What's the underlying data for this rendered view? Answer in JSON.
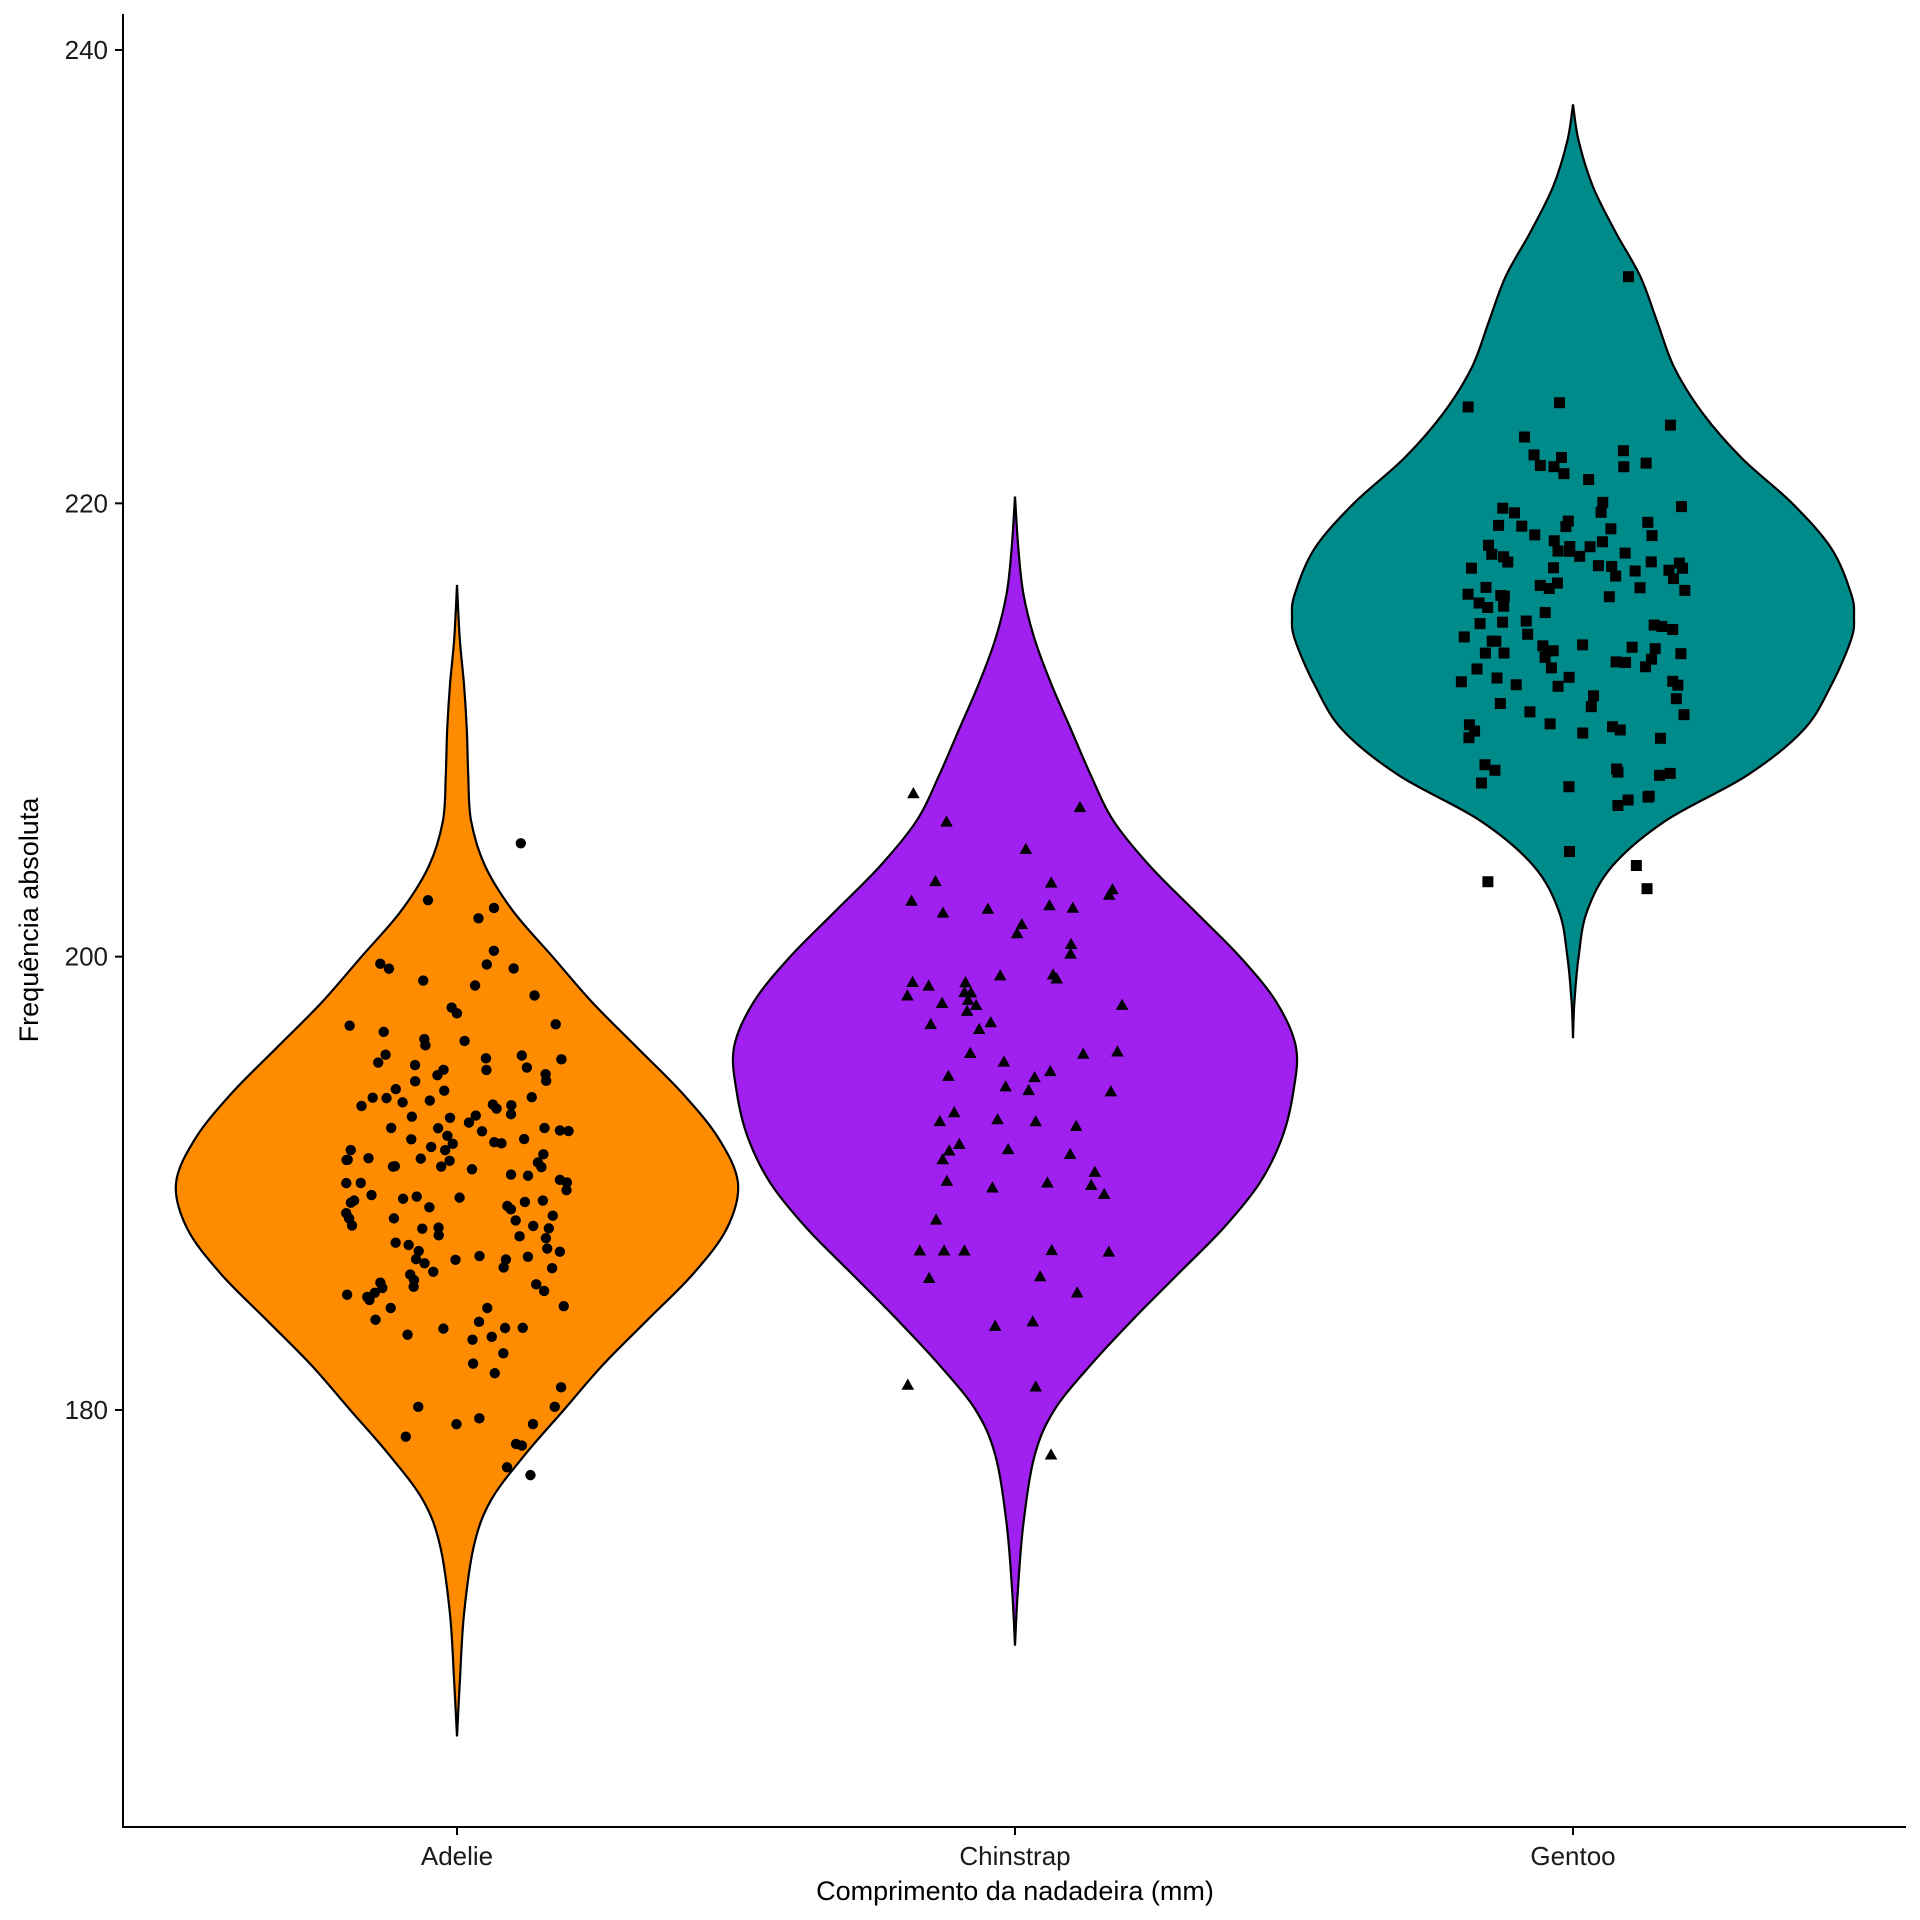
{
  "chart_data": {
    "type": "violin",
    "title": "",
    "xlabel": "Comprimento da nadadeira (mm)",
    "ylabel": "Frequência absoluta",
    "ylim": [
      160,
      241
    ],
    "yticks": [
      180,
      200,
      220,
      240
    ],
    "grid": false,
    "categories": [
      "Adelie",
      "Chinstrap",
      "Gentoo"
    ],
    "series": [
      {
        "name": "Adelie",
        "color": "#FF8C00",
        "marker": "circle",
        "range": [
          165.6,
          216.4
        ],
        "profile": [
          [
            165.6,
            0.0
          ],
          [
            168,
            0.01
          ],
          [
            171,
            0.025
          ],
          [
            174,
            0.06
          ],
          [
            176,
            0.12
          ],
          [
            178,
            0.24
          ],
          [
            180,
            0.38
          ],
          [
            182,
            0.52
          ],
          [
            184,
            0.68
          ],
          [
            186,
            0.84
          ],
          [
            188,
            0.96
          ],
          [
            190,
            1.0
          ],
          [
            192,
            0.93
          ],
          [
            194,
            0.8
          ],
          [
            196,
            0.64
          ],
          [
            198,
            0.48
          ],
          [
            200,
            0.34
          ],
          [
            202,
            0.2
          ],
          [
            204,
            0.1
          ],
          [
            206,
            0.05
          ],
          [
            208,
            0.04
          ],
          [
            210,
            0.035
          ],
          [
            212,
            0.025
          ],
          [
            214,
            0.01
          ],
          [
            216.4,
            0.0
          ]
        ],
        "points": [
          [
            181.0,
            184.5
          ],
          [
            182.5,
            189.0
          ],
          [
            184.5,
            188.0
          ]
        ]
      },
      {
        "name": "Chinstrap",
        "color": "#A020F0",
        "marker": "triangle",
        "range": [
          169.6,
          220.3
        ],
        "profile": [
          [
            169.6,
            0.0
          ],
          [
            172,
            0.01
          ],
          [
            175,
            0.03
          ],
          [
            178,
            0.07
          ],
          [
            180,
            0.14
          ],
          [
            182,
            0.27
          ],
          [
            184,
            0.42
          ],
          [
            186,
            0.58
          ],
          [
            188,
            0.74
          ],
          [
            190,
            0.87
          ],
          [
            192,
            0.95
          ],
          [
            194,
            0.99
          ],
          [
            196,
            1.0
          ],
          [
            198,
            0.93
          ],
          [
            200,
            0.8
          ],
          [
            202,
            0.64
          ],
          [
            204,
            0.48
          ],
          [
            206,
            0.35
          ],
          [
            208,
            0.27
          ],
          [
            210,
            0.2
          ],
          [
            212,
            0.13
          ],
          [
            214,
            0.07
          ],
          [
            216,
            0.03
          ],
          [
            218,
            0.012
          ],
          [
            220.3,
            0.0
          ]
        ],
        "points": [
          [
            178.0,
            181.0
          ],
          [
            187.0,
            187.0
          ],
          [
            187.0,
            201.0
          ]
        ]
      },
      {
        "name": "Gentoo",
        "color": "#008B8B",
        "marker": "square",
        "range": [
          196.4,
          237.6
        ],
        "profile": [
          [
            196.4,
            0.0
          ],
          [
            198,
            0.005
          ],
          [
            200,
            0.02
          ],
          [
            202,
            0.05
          ],
          [
            204,
            0.14
          ],
          [
            206,
            0.33
          ],
          [
            208,
            0.62
          ],
          [
            210,
            0.82
          ],
          [
            212,
            0.92
          ],
          [
            214,
            0.99
          ],
          [
            215,
            1.0
          ],
          [
            216,
            0.99
          ],
          [
            218,
            0.92
          ],
          [
            220,
            0.78
          ],
          [
            222,
            0.6
          ],
          [
            224,
            0.46
          ],
          [
            226,
            0.36
          ],
          [
            228,
            0.3
          ],
          [
            230,
            0.24
          ],
          [
            232,
            0.15
          ],
          [
            234,
            0.07
          ],
          [
            236,
            0.02
          ],
          [
            237.6,
            0.0
          ]
        ],
        "points": [
          [
            203.0,
            208.0
          ],
          [
            210.0,
            230.0
          ]
        ]
      }
    ]
  }
}
